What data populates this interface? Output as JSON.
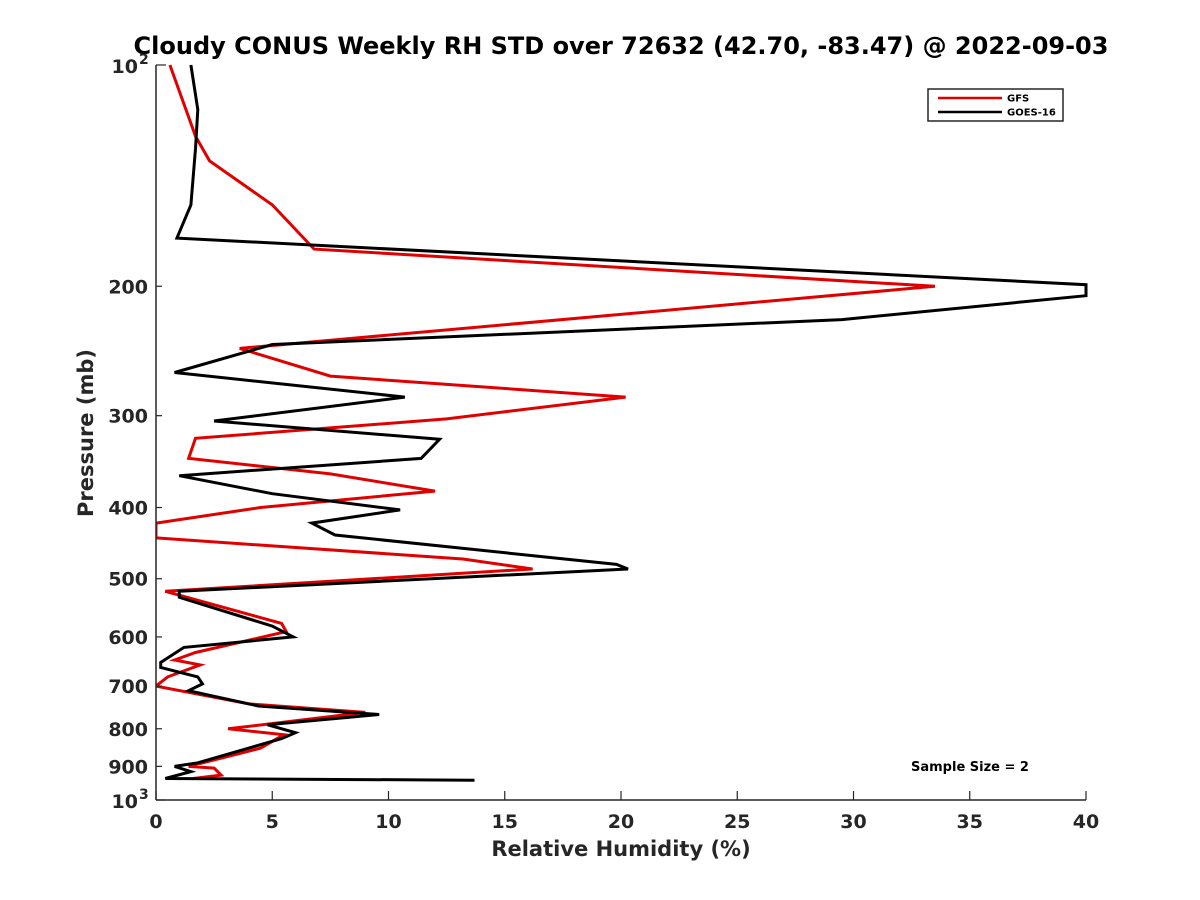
{
  "chart_data": {
    "type": "line",
    "title": "Cloudy CONUS Weekly RH STD over 72632 (42.70, -83.47) @ 2022-09-03",
    "xlabel": "Relative Humidity (%)",
    "ylabel": "Pressure (mb)",
    "xlim": [
      0,
      40
    ],
    "ylim": [
      100,
      1000
    ],
    "yscale": "log",
    "y_reversed": true,
    "x_ticks": [
      "0",
      "5",
      "10",
      "15",
      "20",
      "25",
      "30",
      "35",
      "40"
    ],
    "x_tick_values": [
      0,
      5,
      10,
      15,
      20,
      25,
      30,
      35,
      40
    ],
    "y_ticks_major": [
      {
        "value": 100,
        "base": "10",
        "exp": "2"
      },
      {
        "value": 1000,
        "base": "10",
        "exp": "3"
      }
    ],
    "y_ticks": [
      "200",
      "300",
      "400",
      "500",
      "600",
      "700",
      "800",
      "900"
    ],
    "y_tick_values": [
      200,
      300,
      400,
      500,
      600,
      700,
      800,
      900
    ],
    "legend_position": "top-right",
    "grid": false,
    "annotation": "Sample Size = 2",
    "series": [
      {
        "name": "GFS",
        "color": "#e00000",
        "points": [
          [
            0.6,
            100
          ],
          [
            1.7,
            125
          ],
          [
            2.3,
            135
          ],
          [
            5.0,
            155
          ],
          [
            6.8,
            178
          ],
          [
            33.5,
            200
          ],
          [
            3.6,
            243
          ],
          [
            7.5,
            265
          ],
          [
            20.2,
            283
          ],
          [
            12.5,
            303
          ],
          [
            1.7,
            322
          ],
          [
            1.4,
            343
          ],
          [
            7.5,
            360
          ],
          [
            12.0,
            380
          ],
          [
            4.5,
            400
          ],
          [
            0.0,
            420
          ],
          [
            0.0,
            440
          ],
          [
            13.2,
            470
          ],
          [
            16.2,
            485
          ],
          [
            0.4,
            520
          ],
          [
            5.4,
            575
          ],
          [
            5.6,
            590
          ],
          [
            1.7,
            630
          ],
          [
            0.8,
            645
          ],
          [
            1.9,
            655
          ],
          [
            0.5,
            680
          ],
          [
            0.0,
            700
          ],
          [
            4.0,
            740
          ],
          [
            9.0,
            760
          ],
          [
            3.1,
            800
          ],
          [
            5.5,
            815
          ],
          [
            4.5,
            850
          ],
          [
            1.4,
            900
          ],
          [
            2.5,
            905
          ],
          [
            2.8,
            925
          ],
          [
            1.6,
            935
          ]
        ]
      },
      {
        "name": "GOES-16",
        "color": "#000000",
        "points": [
          [
            1.5,
            100
          ],
          [
            1.8,
            115
          ],
          [
            1.7,
            130
          ],
          [
            1.5,
            155
          ],
          [
            0.9,
            172
          ],
          [
            40.0,
            199
          ],
          [
            40.0,
            206
          ],
          [
            29.5,
            222
          ],
          [
            5.0,
            240
          ],
          [
            0.8,
            262
          ],
          [
            10.7,
            283
          ],
          [
            2.5,
            305
          ],
          [
            12.2,
            323
          ],
          [
            11.4,
            343
          ],
          [
            1.0,
            362
          ],
          [
            5.0,
            383
          ],
          [
            10.5,
            403
          ],
          [
            6.7,
            420
          ],
          [
            7.7,
            436
          ],
          [
            19.8,
            478
          ],
          [
            20.3,
            485
          ],
          [
            1.0,
            520
          ],
          [
            1.0,
            530
          ],
          [
            5.0,
            580
          ],
          [
            5.9,
            600
          ],
          [
            1.2,
            620
          ],
          [
            0.2,
            650
          ],
          [
            0.2,
            660
          ],
          [
            1.8,
            680
          ],
          [
            2.0,
            695
          ],
          [
            1.4,
            710
          ],
          [
            4.4,
            745
          ],
          [
            9.6,
            765
          ],
          [
            4.8,
            790
          ],
          [
            6.0,
            810
          ],
          [
            5.4,
            825
          ],
          [
            1.8,
            890
          ],
          [
            0.8,
            900
          ],
          [
            1.5,
            915
          ],
          [
            0.4,
            935
          ],
          [
            13.7,
            940
          ]
        ]
      }
    ]
  }
}
